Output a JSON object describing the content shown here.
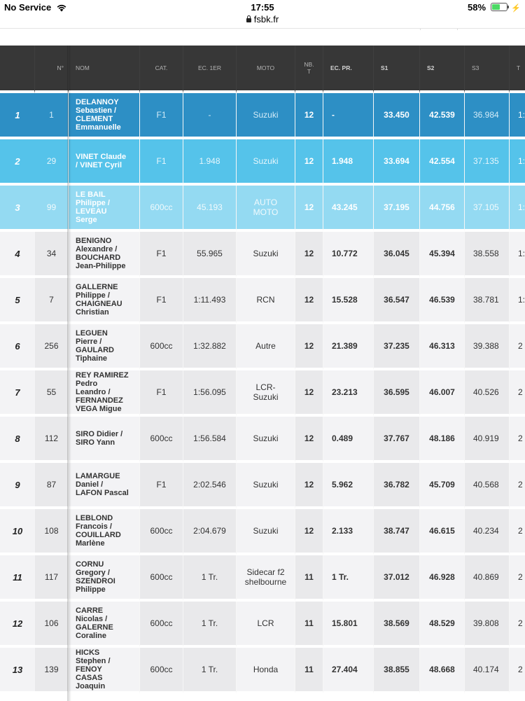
{
  "status_bar": {
    "carrier": "No Service",
    "time": "17:55",
    "battery": "58%",
    "battery_level": 0.58
  },
  "url": "fsbk.fr",
  "table": {
    "headers": {
      "rank": "",
      "num": "N°",
      "name": "NOM",
      "cat": "CAT.",
      "ec1": "EC. 1ER",
      "moto": "MOTO",
      "nbt_1": "NB.",
      "nbt_2": "T",
      "ecpr": "EC. PR.",
      "s1": "S1",
      "s2": "S2",
      "s3": "S3",
      "t": "T"
    },
    "rows": [
      {
        "style": "p1",
        "rank": "1",
        "num": "1",
        "name": [
          "DELANNOY",
          "Sebastien /",
          "CLEMENT",
          "Emmanuelle"
        ],
        "cat": "F1",
        "ec1": "-",
        "moto": [
          "Suzuki"
        ],
        "nbt": "12",
        "ecpr": "-",
        "s1": "33.450",
        "s2": "42.539",
        "s3": "36.984",
        "t": "1:"
      },
      {
        "style": "p2",
        "rank": "2",
        "num": "29",
        "name": [
          "VINET Claude",
          "/ VINET Cyril"
        ],
        "cat": "F1",
        "ec1": "1.948",
        "moto": [
          "Suzuki"
        ],
        "nbt": "12",
        "ecpr": "1.948",
        "s1": "33.694",
        "s2": "42.554",
        "s3": "37.135",
        "t": "1:"
      },
      {
        "style": "p3",
        "rank": "3",
        "num": "99",
        "name": [
          "LE BAIL",
          "Philippe /",
          "LEVEAU",
          "Serge"
        ],
        "cat": "600cc",
        "ec1": "45.193",
        "moto": [
          "AUTO",
          "MOTO"
        ],
        "nbt": "12",
        "ecpr": "43.245",
        "s1": "37.195",
        "s2": "44.756",
        "s3": "37.105",
        "t": "1:"
      },
      {
        "style": "gray",
        "rank": "4",
        "num": "34",
        "name": [
          "BENIGNO",
          "Alexandre /",
          "BOUCHARD",
          "Jean-Philippe"
        ],
        "cat": "F1",
        "ec1": "55.965",
        "moto": [
          "Suzuki"
        ],
        "nbt": "12",
        "ecpr": "10.772",
        "s1": "36.045",
        "s2": "45.394",
        "s3": "38.558",
        "t": "1:"
      },
      {
        "style": "gray",
        "rank": "5",
        "num": "7",
        "name": [
          "GALLERNE",
          "Philippe /",
          "CHAIGNEAU",
          "Christian"
        ],
        "cat": "F1",
        "ec1": "1:11.493",
        "moto": [
          "RCN"
        ],
        "nbt": "12",
        "ecpr": "15.528",
        "s1": "36.547",
        "s2": "46.539",
        "s3": "38.781",
        "t": "1:"
      },
      {
        "style": "gray",
        "rank": "6",
        "num": "256",
        "name": [
          "LEGUEN",
          "Pierre /",
          "GAULARD",
          "Tiphaine"
        ],
        "cat": "600cc",
        "ec1": "1:32.882",
        "moto": [
          "Autre"
        ],
        "nbt": "12",
        "ecpr": "21.389",
        "s1": "37.235",
        "s2": "46.313",
        "s3": "39.388",
        "t": "2"
      },
      {
        "style": "gray",
        "rank": "7",
        "num": "55",
        "name": [
          "REY RAMIREZ",
          "Pedro",
          "Leandro /",
          "FERNANDEZ",
          "VEGA Migue"
        ],
        "cat": "F1",
        "ec1": "1:56.095",
        "moto": [
          "LCR-",
          "Suzuki"
        ],
        "nbt": "12",
        "ecpr": "23.213",
        "s1": "36.595",
        "s2": "46.007",
        "s3": "40.526",
        "t": "2"
      },
      {
        "style": "gray",
        "rank": "8",
        "num": "112",
        "name": [
          "SIRO Didier /",
          "SIRO Yann"
        ],
        "cat": "600cc",
        "ec1": "1:56.584",
        "moto": [
          "Suzuki"
        ],
        "nbt": "12",
        "ecpr": "0.489",
        "s1": "37.767",
        "s2": "48.186",
        "s3": "40.919",
        "t": "2"
      },
      {
        "style": "gray",
        "rank": "9",
        "num": "87",
        "name": [
          "LAMARGUE",
          "Daniel /",
          "LAFON Pascal"
        ],
        "cat": "F1",
        "ec1": "2:02.546",
        "moto": [
          "Suzuki"
        ],
        "nbt": "12",
        "ecpr": "5.962",
        "s1": "36.782",
        "s2": "45.709",
        "s3": "40.568",
        "t": "2"
      },
      {
        "style": "gray",
        "rank": "10",
        "num": "108",
        "name": [
          "LEBLOND",
          "Francois /",
          "COUILLARD",
          "Marlène"
        ],
        "cat": "600cc",
        "ec1": "2:04.679",
        "moto": [
          "Suzuki"
        ],
        "nbt": "12",
        "ecpr": "2.133",
        "s1": "38.747",
        "s2": "46.615",
        "s3": "40.234",
        "t": "2"
      },
      {
        "style": "gray",
        "rank": "11",
        "num": "117",
        "name": [
          "CORNU",
          "Gregory /",
          "SZENDROI",
          "Philippe"
        ],
        "cat": "600cc",
        "ec1": "1 Tr.",
        "moto": [
          "Sidecar f2",
          "shelbourne"
        ],
        "nbt": "11",
        "ecpr": "1 Tr.",
        "s1": "37.012",
        "s2": "46.928",
        "s3": "40.869",
        "t": "2"
      },
      {
        "style": "gray",
        "rank": "12",
        "num": "106",
        "name": [
          "CARRE",
          "Nicolas /",
          "GALERNE",
          "Coraline"
        ],
        "cat": "600cc",
        "ec1": "1 Tr.",
        "moto": [
          "LCR"
        ],
        "nbt": "11",
        "ecpr": "15.801",
        "s1": "38.569",
        "s2": "48.529",
        "s3": "39.808",
        "t": "2"
      },
      {
        "style": "gray",
        "rank": "13",
        "num": "139",
        "name": [
          "HICKS",
          "Stephen /",
          "FENOY",
          "CASAS",
          "Joaquin"
        ],
        "cat": "600cc",
        "ec1": "1 Tr.",
        "moto": [
          "Honda"
        ],
        "nbt": "11",
        "ecpr": "27.404",
        "s1": "38.855",
        "s2": "48.668",
        "s3": "40.174",
        "t": "2"
      }
    ]
  }
}
